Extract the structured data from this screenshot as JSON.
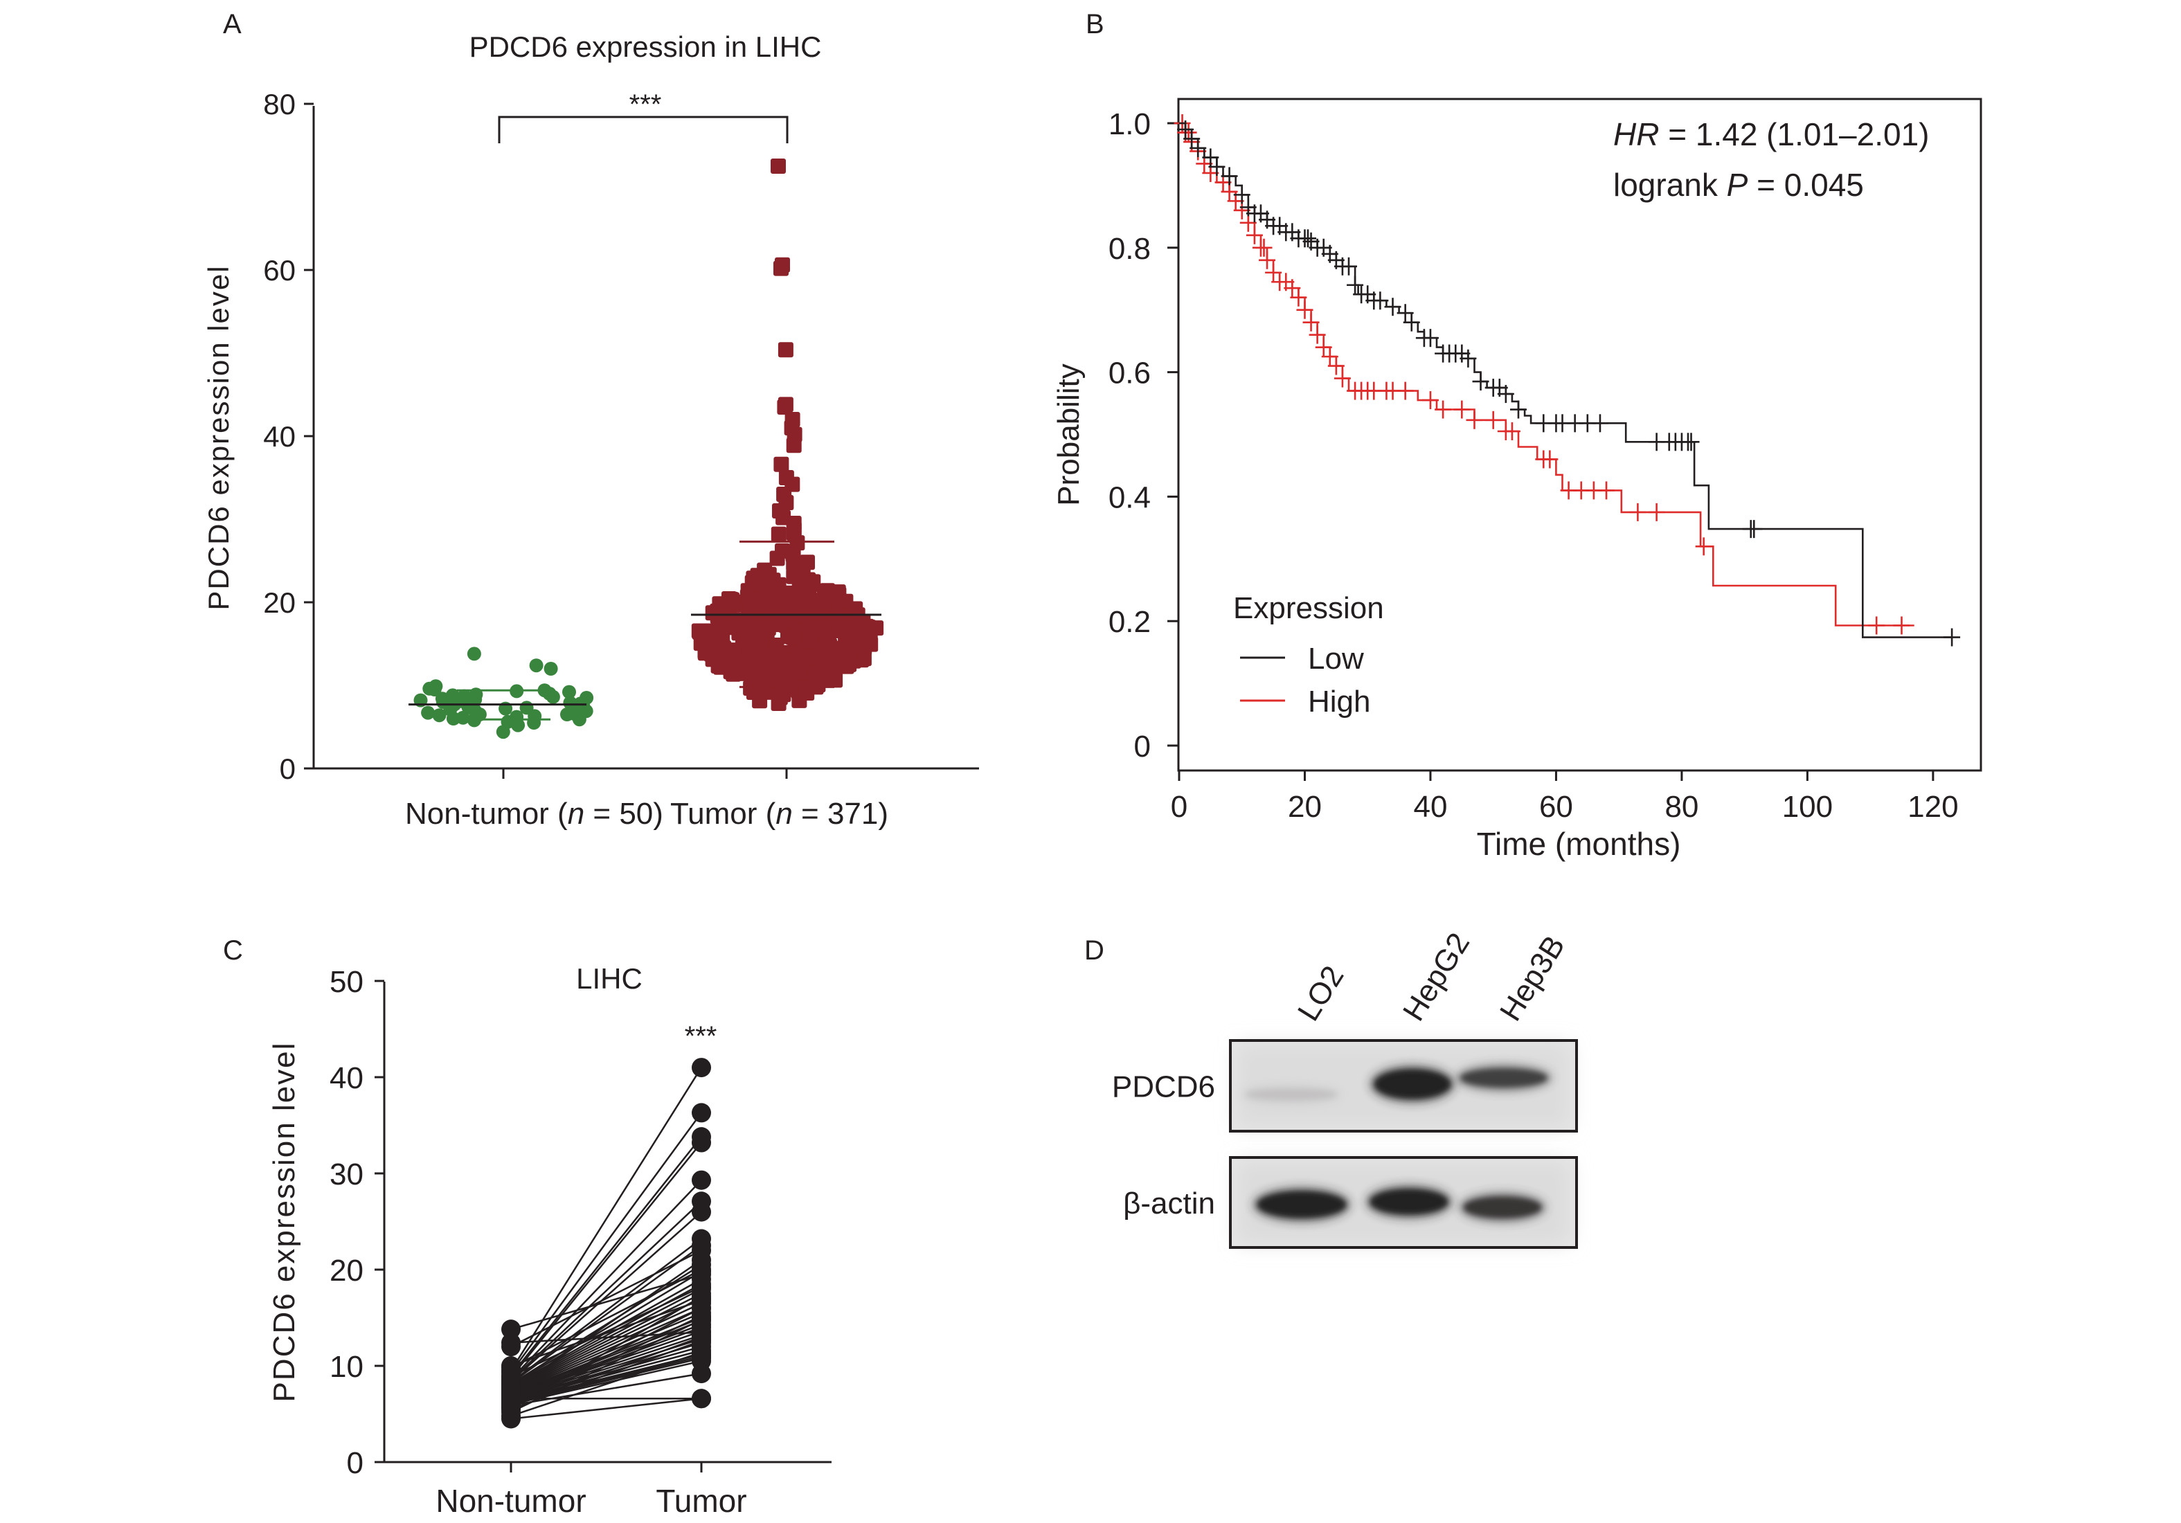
{
  "figure": {
    "panel_labels": [
      "A",
      "B",
      "C",
      "D"
    ]
  },
  "chart_data": [
    {
      "panel": "A",
      "type": "scatter",
      "title": "PDCD6 expression in LIHC",
      "ylabel": "PDCD6 expression level",
      "xlabel": "",
      "ylim": [
        0,
        80
      ],
      "yticks": [
        "0",
        "20",
        "40",
        "60",
        "80"
      ],
      "significance": "***",
      "categories": [
        {
          "label": "Non-tumor (n = 50)",
          "label_parts": [
            "Non-tumor (",
            "n",
            " = 50)"
          ],
          "n": 50,
          "color": "#3a853e",
          "marker": "circle",
          "mean": 7.7,
          "sd_upper": 9.4,
          "sd_lower": 5.9,
          "values": [
            13.8,
            12.4,
            12.0,
            9.9,
            9.6,
            9.5,
            9.4,
            9.3,
            9.2,
            9.0,
            8.9,
            8.8,
            8.7,
            8.6,
            8.5,
            8.4,
            8.3,
            8.2,
            8.1,
            8.0,
            7.9,
            7.8,
            7.8,
            7.7,
            7.6,
            7.5,
            7.4,
            7.3,
            7.2,
            7.1,
            7.0,
            7.0,
            6.9,
            6.8,
            6.8,
            6.7,
            6.6,
            6.5,
            6.5,
            6.4,
            6.3,
            6.2,
            6.1,
            6.0,
            5.9,
            5.8,
            5.6,
            5.5,
            5.2,
            4.4
          ]
        },
        {
          "label": "Tumor (n = 371)",
          "label_parts": [
            "Tumor (",
            "n",
            " = 371)"
          ],
          "n": 371,
          "color": "#8b2229",
          "marker": "square",
          "mean": 18.5,
          "sd_upper": 27.3,
          "sd_lower": 9.8,
          "outliers": [
            72.5,
            60.6,
            60.2,
            50.4,
            43.8,
            43.5,
            42.0,
            41.0,
            40.2,
            38.9,
            36.6,
            35.0,
            34.2,
            33.0,
            32.0,
            31.0,
            30.2,
            29.5,
            28.8,
            28.2
          ],
          "bulk_range": [
            6.5,
            28.0
          ]
        }
      ]
    },
    {
      "panel": "B",
      "type": "line",
      "subtype": "kaplan-meier",
      "xlabel": "Time (months)",
      "ylabel": "Probability",
      "xlim": [
        0,
        125
      ],
      "ylim": [
        0,
        1.0
      ],
      "xticks": [
        "0",
        "20",
        "40",
        "60",
        "80",
        "100",
        "120"
      ],
      "yticks": [
        "0",
        "0.2",
        "0.4",
        "0.6",
        "0.8",
        "1.0"
      ],
      "annotation_hr": {
        "italic": "HR",
        "rest": " = 1.42 (1.01–2.01)"
      },
      "annotation_p": {
        "prefix": "logrank ",
        "italic": "P",
        "rest": " = 0.045"
      },
      "legend": {
        "title": "Expression",
        "position": "bottom-left"
      },
      "series": [
        {
          "name": "Low",
          "color": "#231f20",
          "steps": [
            [
              0,
              1.0
            ],
            [
              1,
              0.99
            ],
            [
              2,
              0.975
            ],
            [
              3,
              0.96
            ],
            [
              4,
              0.945
            ],
            [
              6,
              0.93
            ],
            [
              7,
              0.915
            ],
            [
              9,
              0.9
            ],
            [
              10,
              0.885
            ],
            [
              11,
              0.865
            ],
            [
              12,
              0.855
            ],
            [
              14,
              0.845
            ],
            [
              15,
              0.835
            ],
            [
              17,
              0.825
            ],
            [
              19,
              0.815
            ],
            [
              21,
              0.81
            ],
            [
              22,
              0.8
            ],
            [
              24,
              0.79
            ],
            [
              25,
              0.78
            ],
            [
              26,
              0.77
            ],
            [
              28,
              0.74
            ],
            [
              28.5,
              0.725
            ],
            [
              31,
              0.715
            ],
            [
              33,
              0.705
            ],
            [
              35,
              0.695
            ],
            [
              37,
              0.68
            ],
            [
              38,
              0.665
            ],
            [
              39,
              0.655
            ],
            [
              41,
              0.64
            ],
            [
              42,
              0.63
            ],
            [
              46,
              0.622
            ],
            [
              47,
              0.6
            ],
            [
              48,
              0.585
            ],
            [
              49,
              0.575
            ],
            [
              52,
              0.565
            ],
            [
              53,
              0.553
            ],
            [
              54,
              0.54
            ],
            [
              55,
              0.53
            ],
            [
              56,
              0.518
            ],
            [
              71.1,
              0.488
            ],
            [
              82,
              0.418
            ],
            [
              84.3,
              0.348
            ],
            [
              108.8,
              0.174
            ],
            [
              123,
              0.174
            ]
          ],
          "censor_times": [
            1,
            2,
            3,
            5,
            6,
            8,
            10,
            11,
            12,
            13,
            14,
            15,
            16,
            17,
            18,
            19,
            20,
            20.5,
            21,
            22,
            23,
            24,
            25,
            26,
            27,
            28,
            29,
            30,
            31,
            32,
            34,
            36,
            37,
            39,
            40,
            42,
            43,
            44,
            45,
            46,
            48,
            50,
            51,
            52,
            54,
            58,
            60,
            61,
            63,
            65,
            67,
            76,
            78,
            79,
            80,
            81,
            81.5,
            91,
            91.5,
            123
          ]
        },
        {
          "name": "High",
          "color": "#e02b2b",
          "steps": [
            [
              0,
              1.0
            ],
            [
              1,
              0.985
            ],
            [
              2,
              0.97
            ],
            [
              3,
              0.955
            ],
            [
              4,
              0.935
            ],
            [
              5,
              0.92
            ],
            [
              6,
              0.905
            ],
            [
              8,
              0.89
            ],
            [
              9,
              0.875
            ],
            [
              10,
              0.86
            ],
            [
              11,
              0.84
            ],
            [
              12,
              0.82
            ],
            [
              13,
              0.8
            ],
            [
              14,
              0.78
            ],
            [
              15,
              0.76
            ],
            [
              16,
              0.745
            ],
            [
              18,
              0.735
            ],
            [
              19,
              0.72
            ],
            [
              20,
              0.7
            ],
            [
              21,
              0.68
            ],
            [
              22,
              0.66
            ],
            [
              23,
              0.64
            ],
            [
              24,
              0.625
            ],
            [
              25,
              0.61
            ],
            [
              26,
              0.59
            ],
            [
              27,
              0.57
            ],
            [
              38,
              0.555
            ],
            [
              41,
              0.54
            ],
            [
              47,
              0.523
            ],
            [
              52,
              0.505
            ],
            [
              54,
              0.48
            ],
            [
              57,
              0.46
            ],
            [
              60,
              0.435
            ],
            [
              61,
              0.41
            ],
            [
              70.4,
              0.375
            ],
            [
              83,
              0.32
            ],
            [
              85,
              0.257
            ],
            [
              104.5,
              0.193
            ],
            [
              117,
              0.193
            ]
          ],
          "censor_times": [
            0.5,
            1,
            1.5,
            2,
            3,
            4,
            5,
            7,
            8,
            9,
            10,
            11,
            12,
            13,
            13.5,
            14,
            15,
            16,
            17,
            18,
            19,
            20,
            21,
            22,
            23,
            24,
            25,
            26,
            28,
            29,
            30,
            31,
            33,
            34,
            36,
            40,
            42,
            45,
            47,
            50,
            52,
            53,
            58,
            59,
            62,
            64,
            66,
            68,
            73,
            76,
            83.5,
            111,
            115
          ]
        }
      ]
    },
    {
      "panel": "C",
      "type": "line",
      "subtype": "paired-dot",
      "title": "LIHC",
      "ylabel": "PDCD6 expression level",
      "ylim": [
        0,
        50
      ],
      "yticks": [
        "0",
        "10",
        "20",
        "30",
        "40",
        "50"
      ],
      "categories": [
        "Non-tumor",
        "Tumor"
      ],
      "significance": "***",
      "pairs": [
        [
          13.8,
          19.5
        ],
        [
          12.4,
          13.5
        ],
        [
          12.0,
          22.0
        ],
        [
          10.0,
          16.8
        ],
        [
          9.8,
          20.0
        ],
        [
          9.5,
          41.0
        ],
        [
          9.3,
          36.3
        ],
        [
          9.0,
          33.8
        ],
        [
          8.8,
          33.2
        ],
        [
          8.6,
          29.3
        ],
        [
          8.5,
          27.1
        ],
        [
          8.4,
          26.0
        ],
        [
          8.3,
          23.2
        ],
        [
          8.2,
          22.5
        ],
        [
          8.1,
          20.5
        ],
        [
          8.0,
          19.8
        ],
        [
          7.9,
          19.0
        ],
        [
          7.8,
          18.5
        ],
        [
          7.7,
          18.0
        ],
        [
          7.6,
          17.5
        ],
        [
          7.5,
          17.0
        ],
        [
          7.4,
          16.5
        ],
        [
          7.3,
          16.0
        ],
        [
          7.2,
          15.5
        ],
        [
          7.1,
          15.0
        ],
        [
          7.0,
          14.7
        ],
        [
          6.9,
          14.3
        ],
        [
          6.8,
          14.0
        ],
        [
          6.8,
          13.6
        ],
        [
          6.7,
          13.2
        ],
        [
          6.6,
          12.8
        ],
        [
          6.5,
          12.4
        ],
        [
          6.5,
          12.0
        ],
        [
          6.4,
          11.6
        ],
        [
          6.3,
          11.2
        ],
        [
          6.2,
          11.0
        ],
        [
          6.1,
          10.8
        ],
        [
          6.0,
          10.5
        ],
        [
          5.9,
          9.2
        ],
        [
          5.8,
          13.0
        ],
        [
          5.7,
          15.2
        ],
        [
          5.6,
          17.2
        ],
        [
          5.5,
          12.6
        ],
        [
          6.6,
          6.6
        ],
        [
          4.5,
          6.6
        ],
        [
          4.8,
          11.4
        ],
        [
          5.2,
          14.8
        ],
        [
          7.4,
          21.0
        ],
        [
          8.9,
          18.2
        ],
        [
          6.0,
          16.0
        ]
      ]
    }
  ],
  "panel_a": {
    "title": "PDCD6 expression in LIHC",
    "ylabel": "PDCD6 expression level",
    "significance": "***"
  },
  "panel_c": {
    "title": "LIHC",
    "ylabel": "PDCD6 expression level",
    "significance": "***"
  },
  "panel_d": {
    "type": "western-blot",
    "lanes": [
      "LO2",
      "HepG2",
      "Hep3B"
    ],
    "blots": [
      {
        "label": "PDCD6",
        "band_intensity": [
          0.2,
          1.0,
          0.85
        ]
      },
      {
        "label": "β-actin",
        "band_intensity": [
          1.0,
          1.0,
          0.9
        ]
      }
    ]
  }
}
